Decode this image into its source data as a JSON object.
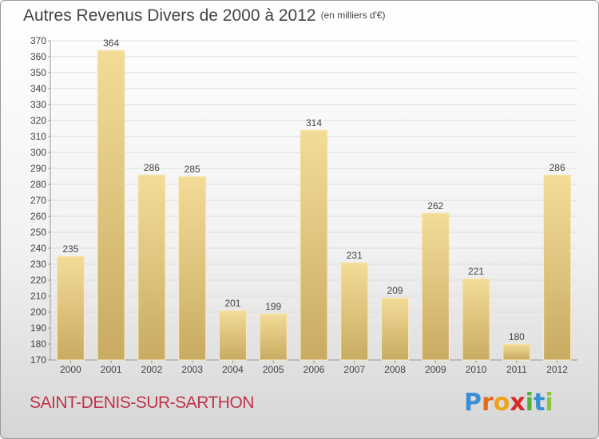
{
  "title": "Autres Revenus Divers de 2000 à 2012",
  "unit_note": "(en milliers d'€)",
  "commune": "SAINT-DENIS-SUR-SARTHON",
  "logo": {
    "letters": [
      "P",
      "r",
      "o",
      "x",
      "i",
      "t",
      "i"
    ],
    "colors": [
      "#3b8fd6",
      "#e86a1c",
      "#f0a21a",
      "#d62a2a",
      "#4fb33a",
      "#3b8fd6",
      "#8cc63f"
    ]
  },
  "colors": {
    "bar_light": "#f3dc98",
    "bar_dark": "#c9ab62",
    "grid": "#dddddd",
    "text": "#444444"
  },
  "chart_data": {
    "type": "bar",
    "categories": [
      "2000",
      "2001",
      "2002",
      "2003",
      "2004",
      "2005",
      "2006",
      "2007",
      "2008",
      "2009",
      "2010",
      "2011",
      "2012"
    ],
    "values": [
      235,
      364,
      286,
      285,
      201,
      199,
      314,
      231,
      209,
      262,
      221,
      180,
      286
    ],
    "data_labels": [
      "235",
      "364",
      "286",
      "285",
      "201",
      "199",
      "314",
      "231",
      "209",
      "262",
      "221",
      "180",
      "286"
    ],
    "ylim": [
      170,
      370
    ],
    "yticks": [
      170,
      180,
      190,
      200,
      210,
      220,
      230,
      240,
      250,
      260,
      270,
      280,
      290,
      300,
      310,
      320,
      330,
      340,
      350,
      360,
      370
    ],
    "grid": true,
    "xlabel": "",
    "ylabel": ""
  }
}
